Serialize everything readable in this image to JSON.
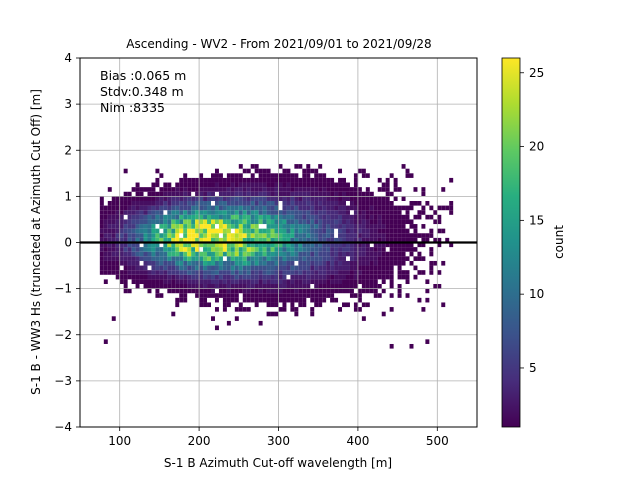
{
  "chart_data": {
    "type": "heatmap",
    "title": "Ascending - WV2 - From 2021/09/01 to 2021/09/28",
    "xlabel": "S-1 B Azimuth Cut-off wavelength [m]",
    "ylabel": "S-1 B - WW3 Hs (truncated at Azimuth Cut Off) [m]",
    "xlim": [
      50,
      550
    ],
    "ylim": [
      -4,
      4
    ],
    "xticks": [
      "100",
      "200",
      "300",
      "400",
      "500"
    ],
    "yticks": [
      "4",
      "3",
      "2",
      "1",
      "0",
      "−1",
      "−2",
      "−3",
      "−4"
    ],
    "grid": true,
    "zero_line": 0,
    "stats": {
      "bias": "Bias :0.065 m",
      "stdv": "Stdv:0.348 m",
      "nim": "Nim :8335"
    },
    "colorbar": {
      "label": "count",
      "colormap": "viridis",
      "min": 1,
      "max": 26,
      "ticks": [
        "5",
        "10",
        "15",
        "20",
        "25"
      ]
    },
    "density_model": {
      "center": [
        205,
        0.1
      ],
      "x_range": [
        75,
        520
      ],
      "y_range": [
        -2.3,
        1.7
      ],
      "peak_count": 26
    }
  }
}
